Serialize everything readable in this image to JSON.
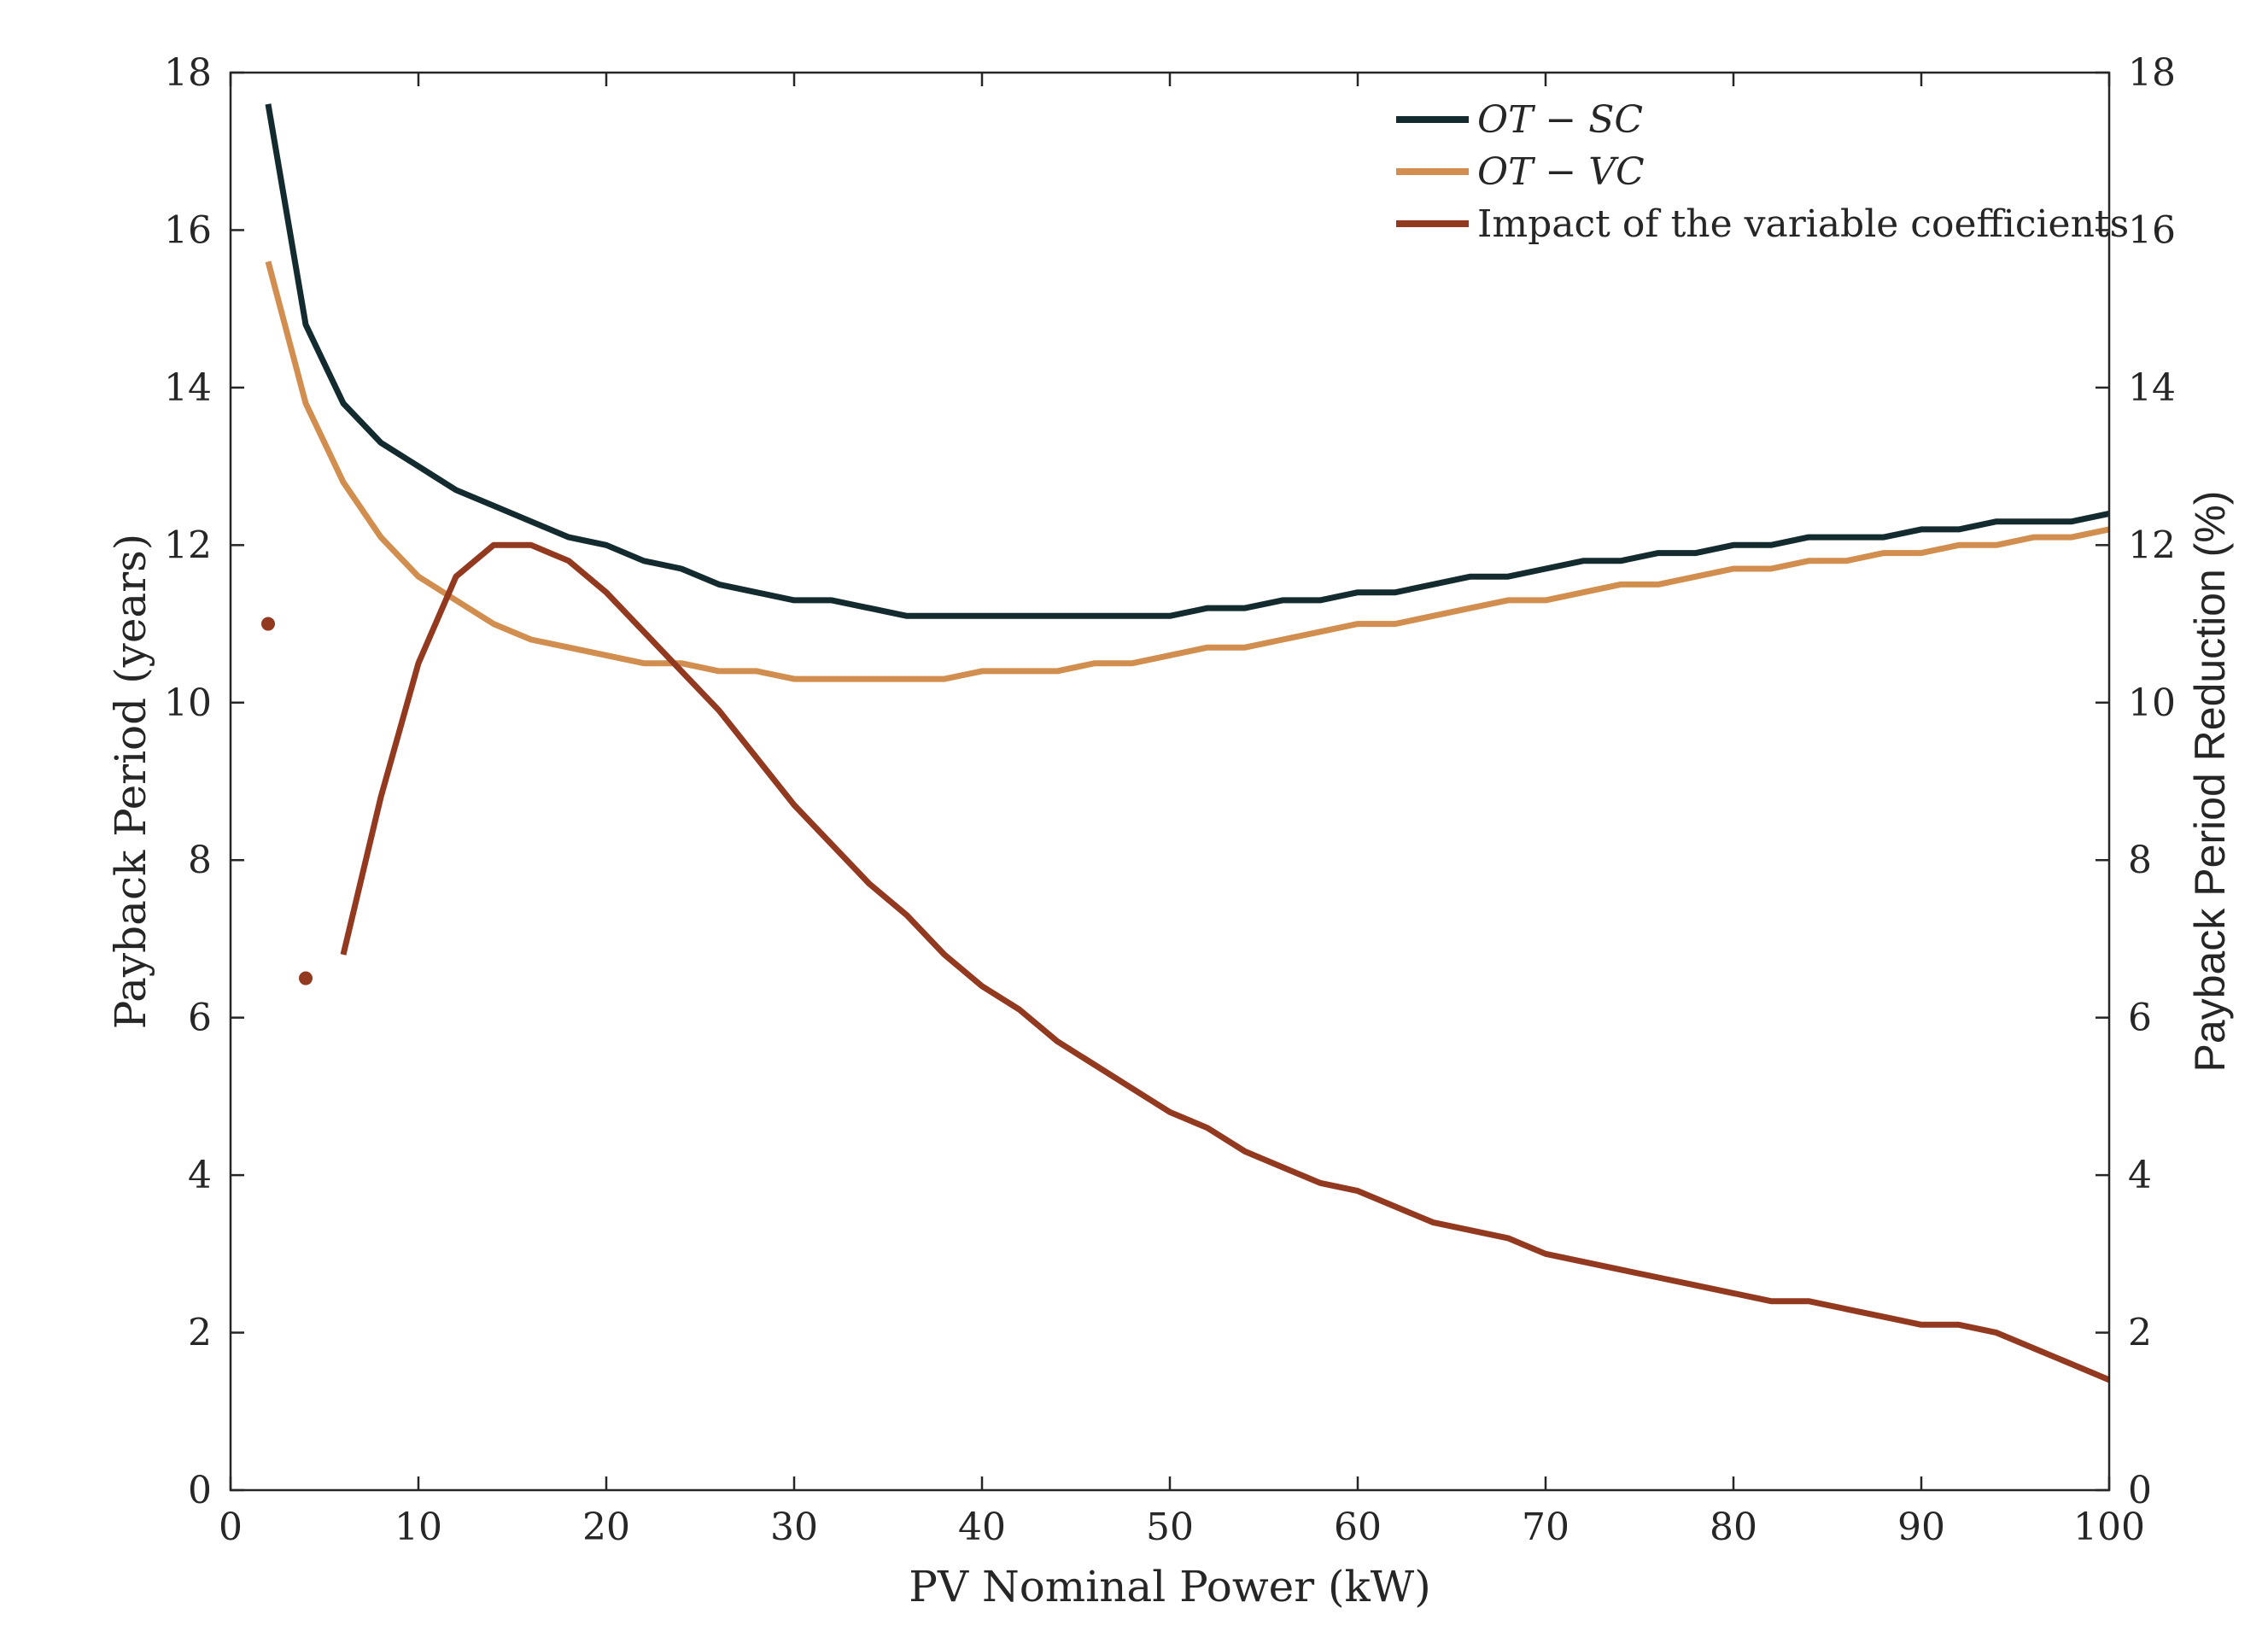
{
  "chart_data": {
    "type": "line",
    "title": "",
    "xlabel": "PV Nominal Power (kW)",
    "ylabel_left": "Payback Period (years)",
    "ylabel_right": "Payback Period Reduction (%)",
    "xlim": [
      0,
      100
    ],
    "ylim_left": [
      0,
      18
    ],
    "ylim_right": [
      0,
      18
    ],
    "x_ticks": [
      "0",
      "10",
      "20",
      "30",
      "40",
      "50",
      "60",
      "70",
      "80",
      "90",
      "100"
    ],
    "y_ticks_left": [
      "0",
      "2",
      "4",
      "6",
      "8",
      "10",
      "12",
      "14",
      "16",
      "18"
    ],
    "y_ticks_right": [
      "0",
      "2",
      "4",
      "6",
      "8",
      "10",
      "12",
      "14",
      "16",
      "18"
    ],
    "grid": false,
    "legend_position": "top-right",
    "series": [
      {
        "name": "OT − SC",
        "axis": "left",
        "color": "#132b2e",
        "style": "line",
        "x": [
          2,
          4,
          6,
          8,
          10,
          12,
          14,
          16,
          18,
          20,
          22,
          24,
          26,
          28,
          30,
          32,
          34,
          36,
          38,
          40,
          42,
          44,
          46,
          48,
          50,
          52,
          54,
          56,
          58,
          60,
          62,
          64,
          66,
          68,
          70,
          72,
          74,
          76,
          78,
          80,
          82,
          84,
          86,
          88,
          90,
          92,
          94,
          96,
          98,
          100
        ],
        "values": [
          17.6,
          14.8,
          13.8,
          13.3,
          13.0,
          12.7,
          12.5,
          12.3,
          12.1,
          12.0,
          11.8,
          11.7,
          11.5,
          11.4,
          11.3,
          11.3,
          11.2,
          11.1,
          11.1,
          11.1,
          11.1,
          11.1,
          11.1,
          11.1,
          11.1,
          11.2,
          11.2,
          11.3,
          11.3,
          11.4,
          11.4,
          11.5,
          11.6,
          11.6,
          11.7,
          11.8,
          11.8,
          11.9,
          11.9,
          12.0,
          12.0,
          12.1,
          12.1,
          12.1,
          12.2,
          12.2,
          12.3,
          12.3,
          12.3,
          12.4
        ]
      },
      {
        "name": "OT − VC",
        "axis": "left",
        "color": "#d18e4f",
        "style": "line",
        "x": [
          2,
          4,
          6,
          8,
          10,
          12,
          14,
          16,
          18,
          20,
          22,
          24,
          26,
          28,
          30,
          32,
          34,
          36,
          38,
          40,
          42,
          44,
          46,
          48,
          50,
          52,
          54,
          56,
          58,
          60,
          62,
          64,
          66,
          68,
          70,
          72,
          74,
          76,
          78,
          80,
          82,
          84,
          86,
          88,
          90,
          92,
          94,
          96,
          98,
          100
        ],
        "values": [
          15.6,
          13.8,
          12.8,
          12.1,
          11.6,
          11.3,
          11.0,
          10.8,
          10.7,
          10.6,
          10.5,
          10.5,
          10.4,
          10.4,
          10.3,
          10.3,
          10.3,
          10.3,
          10.3,
          10.4,
          10.4,
          10.4,
          10.5,
          10.5,
          10.6,
          10.7,
          10.7,
          10.8,
          10.9,
          11.0,
          11.0,
          11.1,
          11.2,
          11.3,
          11.3,
          11.4,
          11.5,
          11.5,
          11.6,
          11.7,
          11.7,
          11.8,
          11.8,
          11.9,
          11.9,
          12.0,
          12.0,
          12.1,
          12.1,
          12.2
        ]
      },
      {
        "name": "Impact of the variable coefficients",
        "axis": "right",
        "color": "#92391f",
        "style": "line",
        "isolated_points": [
          [
            2,
            11.0
          ],
          [
            4,
            6.5
          ]
        ],
        "x": [
          6,
          8,
          10,
          12,
          14,
          16,
          18,
          20,
          22,
          24,
          26,
          28,
          30,
          32,
          34,
          36,
          38,
          40,
          42,
          44,
          46,
          48,
          50,
          52,
          54,
          56,
          58,
          60,
          62,
          64,
          66,
          68,
          70,
          72,
          74,
          76,
          78,
          80,
          82,
          84,
          86,
          88,
          90,
          92,
          94,
          96,
          98,
          100
        ],
        "values": [
          6.8,
          8.8,
          10.5,
          11.6,
          12.0,
          12.0,
          11.8,
          11.4,
          10.9,
          10.4,
          9.9,
          9.3,
          8.7,
          8.2,
          7.7,
          7.3,
          6.8,
          6.4,
          6.1,
          5.7,
          5.4,
          5.1,
          4.8,
          4.6,
          4.3,
          4.1,
          3.9,
          3.8,
          3.6,
          3.4,
          3.3,
          3.2,
          3.0,
          2.9,
          2.8,
          2.7,
          2.6,
          2.5,
          2.4,
          2.4,
          2.3,
          2.2,
          2.1,
          2.1,
          2.0,
          1.8,
          1.6,
          1.4
        ]
      }
    ]
  }
}
